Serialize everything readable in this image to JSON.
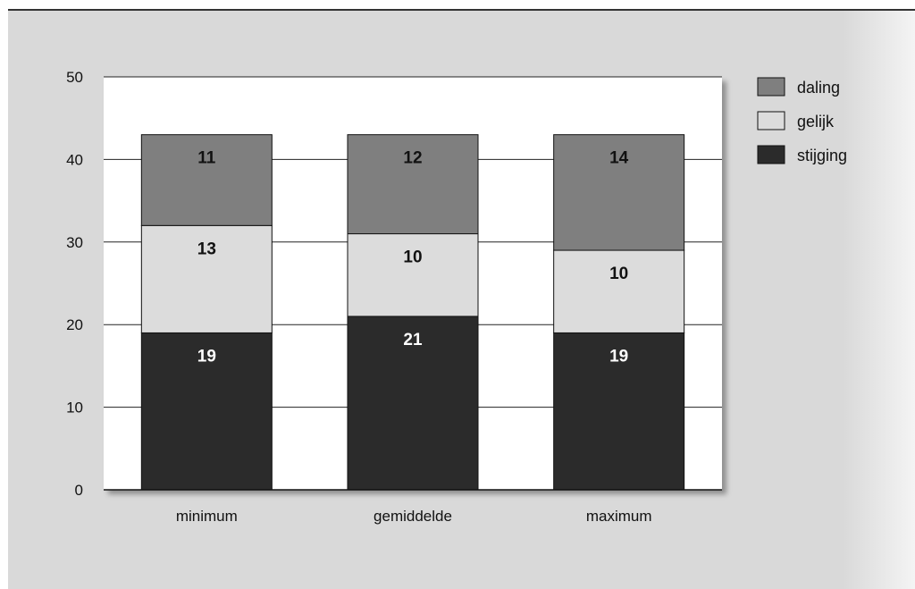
{
  "chart_data": {
    "type": "bar",
    "stacked": true,
    "categories": [
      "minimum",
      "gemiddelde",
      "maximum"
    ],
    "series": [
      {
        "name": "stijging",
        "values": [
          19,
          21,
          19
        ],
        "labels": [
          "19",
          "21",
          "19"
        ],
        "color": "#2b2b2b",
        "label_color": "#ffffff"
      },
      {
        "name": "gelijk",
        "values": [
          13,
          10,
          10
        ],
        "labels": [
          "13",
          "10",
          "10"
        ],
        "color": "#dcdcdc",
        "label_color": "#111111"
      },
      {
        "name": "daling",
        "values": [
          11,
          12,
          14
        ],
        "labels": [
          "11",
          "12",
          "14"
        ],
        "color": "#7f7f7f",
        "label_color": "#111111"
      }
    ],
    "legend_order": [
      "daling",
      "gelijk",
      "stijging"
    ],
    "yticks": [
      "0",
      "10",
      "20",
      "30",
      "40",
      "50"
    ],
    "ylim": [
      0,
      50
    ],
    "grid": true,
    "legend_position": "top-right",
    "plot_background": "#ffffff"
  }
}
